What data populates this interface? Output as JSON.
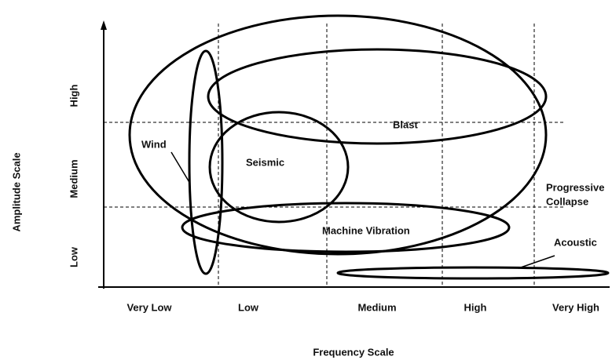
{
  "axes": {
    "y_label": "Amplitude Scale",
    "x_label": "Frequency Scale",
    "x_categories": [
      "Very Low",
      "Low",
      "Medium",
      "High",
      "Very High"
    ],
    "y_categories": [
      "High",
      "Medium",
      "Low"
    ]
  },
  "regions": [
    {
      "label": "Blast"
    },
    {
      "label": "Wind"
    },
    {
      "label": "Seismic"
    },
    {
      "label_lines": [
        "Progressive",
        "Collapse"
      ]
    },
    {
      "label": "Machine Vibration"
    },
    {
      "label": "Acoustic"
    }
  ]
}
